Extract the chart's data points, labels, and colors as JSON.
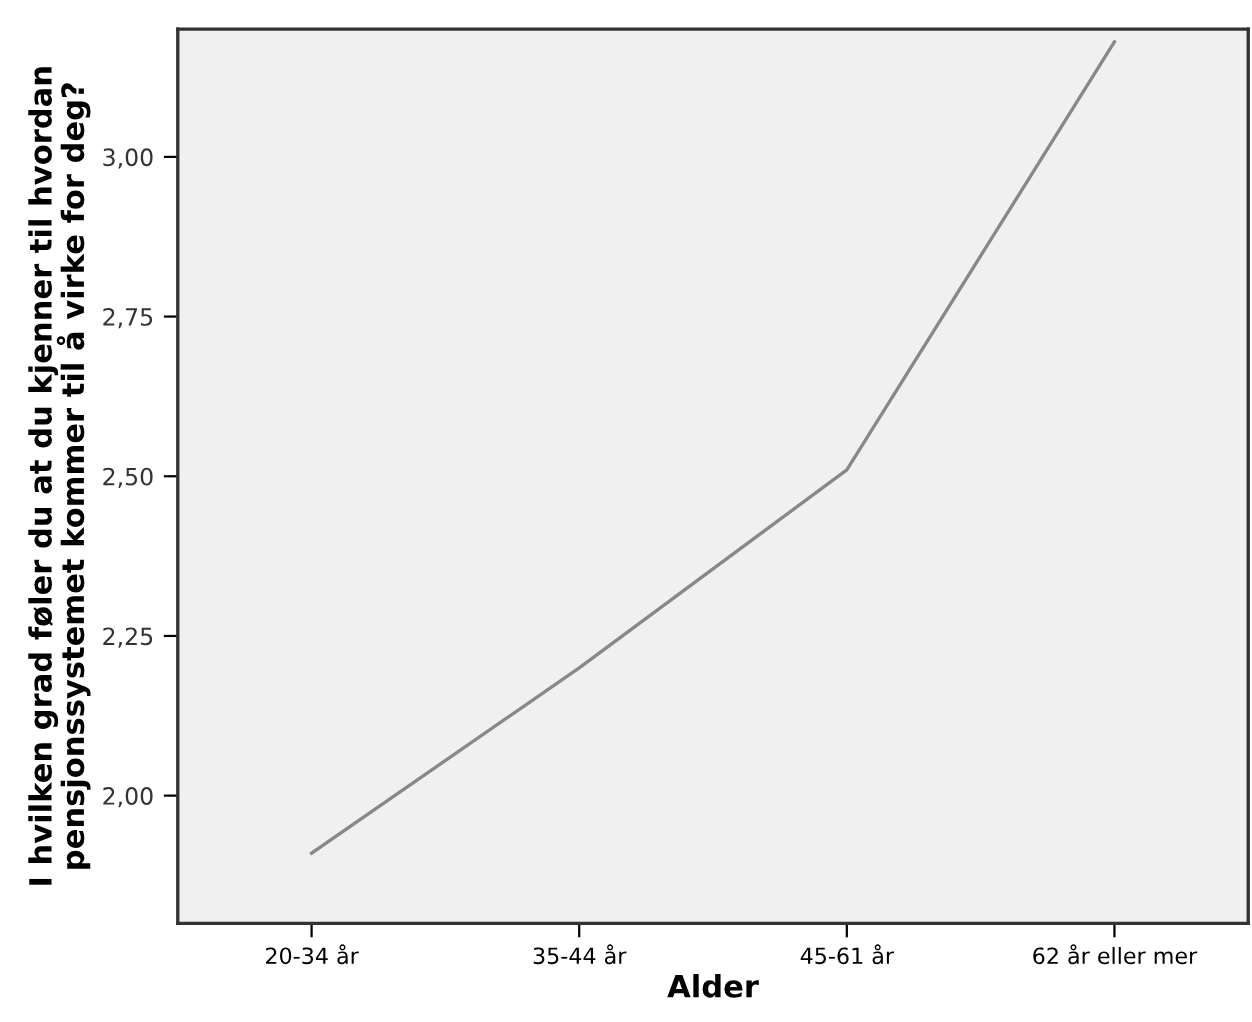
{
  "chart_data": {
    "type": "line",
    "xlabel": "Alder",
    "ylabel": "I hvilken grad føler du at du kjenner til hvordan\npensjonssystemet kommer til å virke for deg?",
    "categories": [
      "20-34 år",
      "35-44 år",
      "45-61 år",
      "62 år eller mer"
    ],
    "series": [
      {
        "color": "#888888",
        "values": [
          1.91,
          2.2,
          2.51,
          3.18
        ]
      }
    ],
    "ylim": [
      1.8,
      3.2
    ],
    "yticks": [
      {
        "value": 2.0,
        "label": "2,00"
      },
      {
        "value": 2.25,
        "label": "2,25"
      },
      {
        "value": 2.5,
        "label": "2,50"
      },
      {
        "value": 2.75,
        "label": "2,75"
      },
      {
        "value": 3.0,
        "label": "3,00"
      }
    ],
    "grid": false,
    "legend": false,
    "marker": "none",
    "line_style": "solid"
  }
}
